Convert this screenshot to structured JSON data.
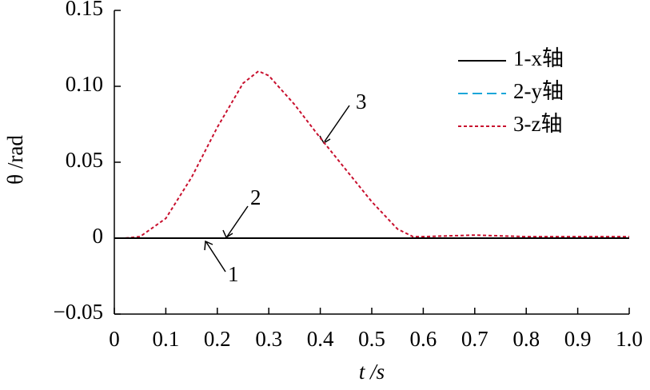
{
  "chart_data": {
    "type": "line",
    "xlabel": "t /s",
    "ylabel": "θ /rad",
    "x": [
      0,
      0.02,
      0.05,
      0.1,
      0.15,
      0.2,
      0.25,
      0.28,
      0.3,
      0.35,
      0.4,
      0.45,
      0.5,
      0.55,
      0.58,
      0.6,
      0.7,
      0.8,
      0.9,
      1.0
    ],
    "series": [
      {
        "name": "1-x轴",
        "color": "#000000",
        "dash": "none",
        "values": [
          0,
          0,
          0,
          0,
          0,
          0,
          0,
          0,
          0,
          0,
          0,
          0,
          0,
          0,
          0,
          0,
          0,
          0,
          0,
          0
        ]
      },
      {
        "name": "2-y轴",
        "color": "#1ba6d9",
        "dash": "12 6",
        "values": [
          0,
          0,
          0,
          0,
          0,
          0,
          0,
          0,
          0,
          0,
          0,
          0,
          0,
          0,
          0,
          0,
          0,
          0,
          0,
          0
        ]
      },
      {
        "name": "3-z轴",
        "color": "#c8102e",
        "dash": "4 3",
        "values": [
          0,
          0,
          0.001,
          0.013,
          0.04,
          0.073,
          0.102,
          0.11,
          0.107,
          0.088,
          0.066,
          0.045,
          0.024,
          0.006,
          0.001,
          0.001,
          0.002,
          0.001,
          0.001,
          0.001
        ]
      }
    ],
    "annotations": [
      "1",
      "2",
      "3"
    ],
    "xlim": [
      0,
      1.0
    ],
    "ylim": [
      -0.05,
      0.15
    ],
    "xticks": [
      0,
      0.1,
      0.2,
      0.3,
      0.4,
      0.5,
      0.6,
      0.7,
      0.8,
      0.9,
      {
        "value": 1.0,
        "label": "1.0"
      }
    ],
    "yticks": [
      {
        "value": -0.05,
        "label": "−0.05"
      },
      0,
      0.05,
      {
        "value": 0.1,
        "label": "0.10"
      },
      0.15
    ],
    "grid": false
  }
}
